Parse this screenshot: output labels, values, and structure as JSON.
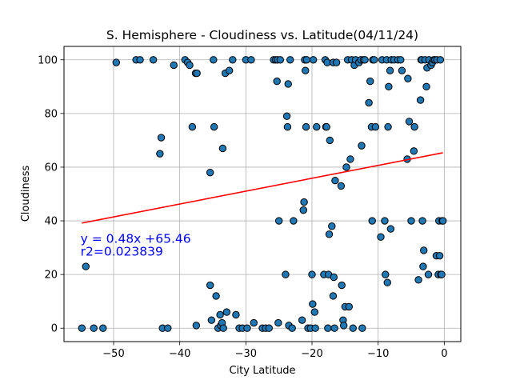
{
  "chart_data": {
    "type": "scatter",
    "title": "S. Hemisphere - Cloudiness vs. Latitude(04/11/24)",
    "xlabel": "City Latitude",
    "ylabel": "Cloudiness",
    "xlim": [
      -57.5,
      2.5
    ],
    "ylim": [
      -5,
      105
    ],
    "xticks": [
      -50,
      -40,
      -30,
      -20,
      -10,
      0
    ],
    "yticks": [
      0,
      20,
      40,
      60,
      80,
      100
    ],
    "grid": true,
    "point_color": "#1f77b4",
    "line_color": "#ff0000",
    "annotation_color": "#0000ff",
    "regression": {
      "slope": 0.48,
      "intercept": 65.46,
      "x_start": -54.8,
      "x_end": -0.2
    },
    "annotation_lines": [
      "y = 0.48x +65.46",
      "r2=0.023839"
    ],
    "annotation_anchor": {
      "x": -55,
      "y": 27
    },
    "points": [
      [
        -54.8,
        0
      ],
      [
        -53,
        0
      ],
      [
        -51.6,
        0
      ],
      [
        -54.2,
        23
      ],
      [
        -49.6,
        99
      ],
      [
        -46.6,
        100
      ],
      [
        -46,
        100
      ],
      [
        -44,
        100
      ],
      [
        -43,
        65
      ],
      [
        -42.8,
        71
      ],
      [
        -42.6,
        0
      ],
      [
        -41.8,
        0
      ],
      [
        -40.9,
        98
      ],
      [
        -39.2,
        100
      ],
      [
        -38.8,
        99
      ],
      [
        -38.5,
        98
      ],
      [
        -38.1,
        75
      ],
      [
        -37.6,
        95
      ],
      [
        -37.4,
        95
      ],
      [
        -37.5,
        1
      ],
      [
        -35.4,
        58
      ],
      [
        -35.4,
        16
      ],
      [
        -35.2,
        3
      ],
      [
        -34.9,
        100
      ],
      [
        -34.8,
        75
      ],
      [
        -34.5,
        12
      ],
      [
        -34.2,
        0
      ],
      [
        -33.9,
        5
      ],
      [
        -33.8,
        1
      ],
      [
        -33.6,
        2
      ],
      [
        -33.5,
        67
      ],
      [
        -33.4,
        0
      ],
      [
        -33.1,
        95
      ],
      [
        -32.9,
        6
      ],
      [
        -32.5,
        96
      ],
      [
        -32,
        100
      ],
      [
        -31.5,
        5
      ],
      [
        -31,
        0
      ],
      [
        -30.5,
        0
      ],
      [
        -30,
        100
      ],
      [
        -29.8,
        0
      ],
      [
        -29.2,
        100
      ],
      [
        -28.8,
        2
      ],
      [
        -27.5,
        0
      ],
      [
        -27,
        0
      ],
      [
        -26.5,
        0
      ],
      [
        -25.8,
        100
      ],
      [
        -25.5,
        100
      ],
      [
        -25.3,
        92
      ],
      [
        -25.2,
        100
      ],
      [
        -25.1,
        2
      ],
      [
        -25,
        40
      ],
      [
        -24.8,
        100
      ],
      [
        -24,
        20
      ],
      [
        -23.8,
        79
      ],
      [
        -23.7,
        75
      ],
      [
        -23.6,
        91
      ],
      [
        -23.5,
        1
      ],
      [
        -23.3,
        100
      ],
      [
        -23,
        0
      ],
      [
        -22.8,
        40
      ],
      [
        -21.5,
        3
      ],
      [
        -21.3,
        44
      ],
      [
        -21.2,
        47
      ],
      [
        -21.1,
        100
      ],
      [
        -21,
        96
      ],
      [
        -20.9,
        75
      ],
      [
        -20.8,
        100
      ],
      [
        -20.6,
        0
      ],
      [
        -20.2,
        0
      ],
      [
        -20,
        20
      ],
      [
        -19.9,
        9
      ],
      [
        -19.8,
        100
      ],
      [
        -19.6,
        6
      ],
      [
        -19.5,
        0
      ],
      [
        -19.3,
        75
      ],
      [
        -18.2,
        20
      ],
      [
        -18,
        100
      ],
      [
        -17.9,
        75
      ],
      [
        -17.8,
        75
      ],
      [
        -17.7,
        99
      ],
      [
        -17.6,
        0
      ],
      [
        -17.5,
        20
      ],
      [
        -17.4,
        35
      ],
      [
        -17.3,
        70
      ],
      [
        -17,
        38
      ],
      [
        -16.8,
        99
      ],
      [
        -16.8,
        12
      ],
      [
        -16.7,
        19
      ],
      [
        -16.6,
        0
      ],
      [
        -16.5,
        55
      ],
      [
        -16.3,
        99
      ],
      [
        -15.6,
        53
      ],
      [
        -15.5,
        16
      ],
      [
        -15.3,
        3
      ],
      [
        -15.2,
        1
      ],
      [
        -15,
        8
      ],
      [
        -14.8,
        60
      ],
      [
        -14.6,
        100
      ],
      [
        -14.4,
        8
      ],
      [
        -14.2,
        63
      ],
      [
        -14,
        100
      ],
      [
        -13.8,
        0
      ],
      [
        -13.6,
        98
      ],
      [
        -13.4,
        100
      ],
      [
        -12.9,
        99
      ],
      [
        -12.6,
        100
      ],
      [
        -12.5,
        68
      ],
      [
        -12.4,
        0
      ],
      [
        -12.2,
        100
      ],
      [
        -12,
        100
      ],
      [
        -11.4,
        84
      ],
      [
        -11.2,
        92
      ],
      [
        -11,
        75
      ],
      [
        -10.9,
        40
      ],
      [
        -10.8,
        100
      ],
      [
        -10.6,
        100
      ],
      [
        -10.4,
        75
      ],
      [
        -9.6,
        34
      ],
      [
        -9.4,
        100
      ],
      [
        -9,
        40
      ],
      [
        -8.9,
        20
      ],
      [
        -8.7,
        100
      ],
      [
        -8.6,
        17
      ],
      [
        -8.5,
        75
      ],
      [
        -8.4,
        90
      ],
      [
        -8.2,
        96
      ],
      [
        -8.1,
        37
      ],
      [
        -8,
        100
      ],
      [
        -7.6,
        100
      ],
      [
        -7,
        100
      ],
      [
        -6.6,
        100
      ],
      [
        -6.4,
        96
      ],
      [
        -5.6,
        63
      ],
      [
        -5.5,
        93
      ],
      [
        -5.3,
        77
      ],
      [
        -5,
        40
      ],
      [
        -4.6,
        66
      ],
      [
        -4.5,
        75
      ],
      [
        -3.9,
        18
      ],
      [
        -3.6,
        85
      ],
      [
        -3.5,
        100
      ],
      [
        -3.4,
        100
      ],
      [
        -3.3,
        40
      ],
      [
        -3.2,
        23
      ],
      [
        -3.1,
        29
      ],
      [
        -2.9,
        100
      ],
      [
        -2.7,
        90
      ],
      [
        -2.6,
        97
      ],
      [
        -2.4,
        20
      ],
      [
        -2.3,
        100
      ],
      [
        -2,
        98
      ],
      [
        -1.8,
        99
      ],
      [
        -1.6,
        100
      ],
      [
        -1.4,
        100
      ],
      [
        -1.2,
        27
      ],
      [
        -1.1,
        100
      ],
      [
        -0.9,
        20
      ],
      [
        -0.8,
        40
      ],
      [
        -0.7,
        27
      ],
      [
        -0.6,
        100
      ],
      [
        -0.5,
        20
      ],
      [
        -0.4,
        20
      ],
      [
        -0.3,
        40
      ],
      [
        -0.2,
        40
      ]
    ]
  }
}
